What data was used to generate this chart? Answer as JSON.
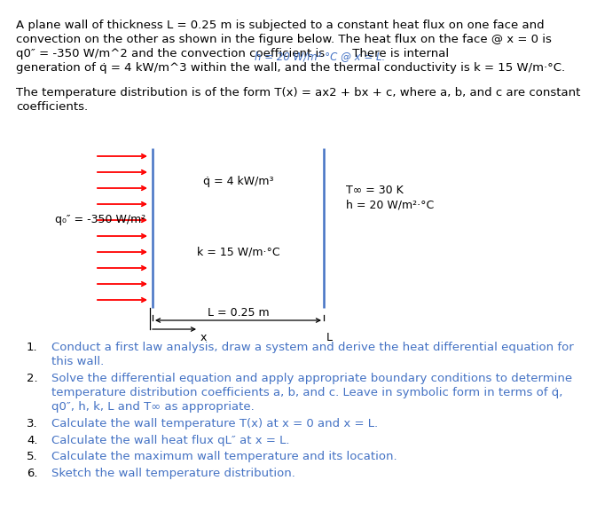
{
  "bg_color": "#ffffff",
  "text_color": "#000000",
  "blue_color": "#4472C4",
  "red_color": "#FF0000",
  "line1": "A plane wall of thickness L = 0.25 m is subjected to a constant heat flux on one face and",
  "line2": "convection on the other as shown in the figure below. The heat flux on the face @ x = 0 is",
  "line3a": "q0″ = -350 W/m^2 and the convection coefficient is ",
  "line3b": "h = 20 W/m²·°C @ x = L.",
  "line3c": " There is internal",
  "line4": "generation of q̇ = 4 kW/m^3 within the wall, and the thermal conductivity is k = 15 W/m·°C.",
  "line5": "The temperature distribution is of the form T(x) = ax2 + bx + c, where a, b, and c are constant",
  "line6": "coefficients.",
  "qdot_label": "q̇ = 4 kW/m³",
  "k_label": "k = 15 W/m·°C",
  "q0_label": "q₀″ = -350 W/m²",
  "Tinf_label": "T∞ = 30 K",
  "h_label": "h = 20 W/m²·°C",
  "L_label": "L = 0.25 m",
  "x_label": "x",
  "L_end_label": "L",
  "item1a": "Conduct a first law analysis, draw a system and derive the heat differential equation for",
  "item1b": "this wall.",
  "item2a": "Solve the differential equation and apply appropriate boundary conditions to determine",
  "item2b": "temperature distribution coefficients a, b, and c. Leave in symbolic form in terms of q̇,",
  "item2c": "q0″, h, k, L and T∞ as appropriate.",
  "item3": "Calculate the wall temperature T(x) at x = 0 and x = L.",
  "item4": "Calculate the wall heat flux qL″ at x = L.",
  "item5": "Calculate the maximum wall temperature and its location.",
  "item6": "Sketch the wall temperature distribution.",
  "fontsize": 9.5,
  "fontsize_small": 8.5,
  "fontsize_diag": 9.0
}
